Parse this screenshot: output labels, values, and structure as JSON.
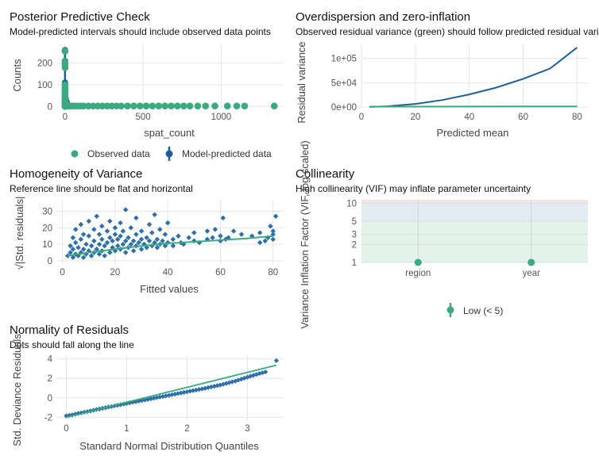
{
  "colors": {
    "green": "#3aaa80",
    "blue": "#1f5f99",
    "scatter_blue": "#2d6fa8",
    "grid": "#e6e6e6",
    "zone_low": "#e3f2ea",
    "zone_moderate": "#e2eaf2",
    "zone_high": "#f7e3e5"
  },
  "chart_data": [
    {
      "id": "ppc",
      "type": "scatter",
      "title": "Posterior Predictive Check",
      "subtitle": "Model-predicted intervals should include observed data points",
      "xlabel": "spat_count",
      "ylabel": "Counts",
      "xlim": [
        -50,
        1400
      ],
      "ylim": [
        -10,
        290
      ],
      "xticks": [
        0,
        500,
        1000
      ],
      "yticks": [
        0,
        100,
        200
      ],
      "legend_position": "bottom",
      "legend": [
        "Observed data",
        "Model-predicted data"
      ],
      "series": [
        {
          "name": "Observed data",
          "points": [
            [
              1,
              7
            ],
            [
              2,
              5
            ],
            [
              3,
              3
            ],
            [
              5,
              3
            ],
            [
              8,
              3
            ],
            [
              12,
              2
            ],
            [
              20,
              2
            ],
            [
              30,
              2
            ],
            [
              45,
              2
            ],
            [
              60,
              2
            ],
            [
              80,
              2
            ],
            [
              100,
              2
            ],
            [
              120,
              2
            ],
            [
              150,
              2
            ],
            [
              180,
              2
            ],
            [
              210,
              2
            ],
            [
              240,
              2
            ],
            [
              270,
              2
            ],
            [
              300,
              2
            ],
            [
              330,
              2
            ],
            [
              360,
              2
            ],
            [
              400,
              2
            ],
            [
              440,
              2
            ],
            [
              480,
              2
            ],
            [
              520,
              2
            ],
            [
              560,
              2
            ],
            [
              600,
              2
            ],
            [
              640,
              2
            ],
            [
              680,
              2
            ],
            [
              720,
              2
            ],
            [
              760,
              2
            ],
            [
              800,
              2
            ],
            [
              850,
              2
            ],
            [
              900,
              2
            ],
            [
              960,
              2
            ],
            [
              1040,
              2
            ],
            [
              1100,
              2
            ],
            [
              1150,
              2
            ],
            [
              1340,
              2
            ]
          ],
          "vertical_points": [
            [
              0,
              0
            ],
            [
              0,
              5
            ],
            [
              0,
              10
            ],
            [
              0,
              15
            ],
            [
              0,
              20
            ],
            [
              0,
              25
            ],
            [
              0,
              30
            ],
            [
              0,
              40
            ],
            [
              0,
              50
            ],
            [
              0,
              60
            ],
            [
              0,
              70
            ],
            [
              0,
              80
            ],
            [
              0,
              90
            ],
            [
              0,
              100
            ],
            [
              0,
              180
            ],
            [
              0,
              195
            ],
            [
              0,
              210
            ],
            [
              0,
              255
            ]
          ]
        },
        {
          "name": "Model-predicted data",
          "intervals": [
            [
              0,
              0,
              260
            ],
            [
              0,
              0,
              110
            ],
            [
              3,
              0,
              40
            ],
            [
              6,
              0,
              30
            ],
            [
              10,
              0,
              20
            ]
          ]
        }
      ]
    },
    {
      "id": "overdispersion",
      "type": "line",
      "title": "Overdispersion and zero-inflation",
      "subtitle": "Observed residual variance (green) should follow predicted residual variance (blue)",
      "xlabel": "Predicted mean",
      "ylabel": "Residual variance",
      "xlim": [
        0,
        84
      ],
      "ylim": [
        -3000,
        130000
      ],
      "xticks": [
        0,
        20,
        40,
        60,
        80
      ],
      "yticks": [
        0,
        50000,
        100000
      ],
      "ytick_labels": [
        "0e+00",
        "5e+04",
        "1e+05"
      ],
      "series": [
        {
          "name": "predicted",
          "color": "blue",
          "x": [
            3,
            10,
            20,
            30,
            40,
            50,
            60,
            70,
            80
          ],
          "y": [
            400,
            1800,
            6500,
            14500,
            26000,
            40000,
            58000,
            79000,
            122000
          ]
        },
        {
          "name": "observed",
          "color": "green",
          "x": [
            3,
            80
          ],
          "y": [
            1000,
            1500
          ]
        }
      ]
    },
    {
      "id": "homogeneity",
      "type": "scatter",
      "title": "Homogeneity of Variance",
      "subtitle": "Reference line should be flat and horizontal",
      "xlabel": "Fitted values",
      "ylabel": "√|Std. residuals|",
      "xlim": [
        -2,
        84
      ],
      "ylim": [
        -2,
        37
      ],
      "xticks": [
        0,
        20,
        40,
        60,
        80
      ],
      "yticks": [
        0,
        10,
        20,
        30
      ],
      "points": [
        [
          2,
          3
        ],
        [
          3,
          5
        ],
        [
          3,
          9
        ],
        [
          4,
          2
        ],
        [
          4,
          7
        ],
        [
          4,
          14
        ],
        [
          5,
          4
        ],
        [
          5,
          11
        ],
        [
          5,
          19
        ],
        [
          6,
          3
        ],
        [
          6,
          8
        ],
        [
          7,
          5
        ],
        [
          7,
          13
        ],
        [
          7,
          22
        ],
        [
          8,
          2
        ],
        [
          8,
          7
        ],
        [
          8,
          16
        ],
        [
          9,
          4
        ],
        [
          9,
          10
        ],
        [
          10,
          6
        ],
        [
          10,
          15
        ],
        [
          10,
          24
        ],
        [
          11,
          3
        ],
        [
          11,
          9
        ],
        [
          12,
          5
        ],
        [
          12,
          12
        ],
        [
          12,
          19
        ],
        [
          13,
          7
        ],
        [
          13,
          27
        ],
        [
          14,
          4
        ],
        [
          14,
          10
        ],
        [
          14,
          16
        ],
        [
          15,
          6
        ],
        [
          15,
          13
        ],
        [
          15,
          21
        ],
        [
          16,
          3
        ],
        [
          16,
          9
        ],
        [
          17,
          11
        ],
        [
          17,
          18
        ],
        [
          18,
          5
        ],
        [
          18,
          14
        ],
        [
          18,
          24
        ],
        [
          19,
          8
        ],
        [
          19,
          12
        ],
        [
          20,
          6
        ],
        [
          20,
          16
        ],
        [
          20,
          20
        ],
        [
          21,
          9
        ],
        [
          21,
          13
        ],
        [
          22,
          7
        ],
        [
          22,
          15
        ],
        [
          22,
          23
        ],
        [
          23,
          10
        ],
        [
          23,
          18
        ],
        [
          24,
          5
        ],
        [
          24,
          12
        ],
        [
          24,
          31
        ],
        [
          25,
          8
        ],
        [
          25,
          14
        ],
        [
          26,
          10
        ],
        [
          26,
          20
        ],
        [
          27,
          6
        ],
        [
          27,
          12
        ],
        [
          28,
          9
        ],
        [
          28,
          16
        ],
        [
          28,
          26
        ],
        [
          29,
          11
        ],
        [
          30,
          7
        ],
        [
          30,
          13
        ],
        [
          30,
          18
        ],
        [
          31,
          10
        ],
        [
          32,
          8
        ],
        [
          32,
          14
        ],
        [
          33,
          12
        ],
        [
          33,
          22
        ],
        [
          34,
          9
        ],
        [
          34,
          17
        ],
        [
          35,
          11
        ],
        [
          35,
          28
        ],
        [
          36,
          13
        ],
        [
          36,
          8
        ],
        [
          37,
          10
        ],
        [
          37,
          19
        ],
        [
          38,
          12
        ],
        [
          39,
          9
        ],
        [
          39,
          16
        ],
        [
          40,
          11
        ],
        [
          40,
          23
        ],
        [
          42,
          13
        ],
        [
          42,
          9
        ],
        [
          44,
          15
        ],
        [
          45,
          11
        ],
        [
          46,
          10
        ],
        [
          48,
          14
        ],
        [
          50,
          12
        ],
        [
          50,
          17
        ],
        [
          52,
          11
        ],
        [
          55,
          13
        ],
        [
          55,
          18
        ],
        [
          57,
          14
        ],
        [
          58,
          19
        ],
        [
          60,
          12
        ],
        [
          60,
          15
        ],
        [
          61,
          26
        ],
        [
          62,
          13
        ],
        [
          63,
          14
        ],
        [
          65,
          18
        ],
        [
          68,
          16
        ],
        [
          72,
          15
        ],
        [
          75,
          17
        ],
        [
          75,
          11
        ],
        [
          77,
          12
        ],
        [
          78,
          14
        ],
        [
          79,
          21
        ],
        [
          80,
          13
        ],
        [
          80,
          16
        ],
        [
          80,
          18
        ],
        [
          81,
          27
        ]
      ],
      "reference_line": {
        "x": [
          2,
          10,
          20,
          30,
          40,
          50,
          60,
          70,
          80
        ],
        "y": [
          3,
          5,
          7,
          9,
          10.5,
          11.5,
          12.5,
          13.5,
          15
        ]
      }
    },
    {
      "id": "collinearity",
      "type": "scatter",
      "title": "Collinearity",
      "subtitle": "High collinearity (VIF) may inflate parameter uncertainty",
      "xlabel": "",
      "ylabel": "Variance Inflation Factor (VIF, log-scaled)",
      "scale": "log",
      "ylim": [
        1,
        11.5
      ],
      "yticks": [
        1,
        2,
        3,
        5,
        10
      ],
      "categories": [
        "region",
        "year"
      ],
      "values": [
        1.0,
        1.0
      ],
      "zones": [
        {
          "name": "low",
          "from": 1,
          "to": 5
        },
        {
          "name": "moderate",
          "from": 5,
          "to": 10
        },
        {
          "name": "high",
          "from": 10,
          "to": 11.5
        }
      ],
      "legend_position": "bottom",
      "legend": [
        "Low (< 5)"
      ]
    },
    {
      "id": "normality",
      "type": "scatter",
      "title": "Normality of Residuals",
      "subtitle": "Dots should fall along the line",
      "xlabel": "Standard Normal Distribution Quantiles",
      "ylabel": "Std. Deviance Residuals",
      "xlim": [
        -0.15,
        3.6
      ],
      "ylim": [
        -2.3,
        4.3
      ],
      "xticks": [
        0,
        1,
        2,
        3
      ],
      "yticks": [
        -2,
        0,
        2,
        4
      ],
      "points": [
        [
          0,
          -1.85
        ],
        [
          0.05,
          -1.8
        ],
        [
          0.1,
          -1.75
        ],
        [
          0.15,
          -1.68
        ],
        [
          0.2,
          -1.6
        ],
        [
          0.25,
          -1.55
        ],
        [
          0.3,
          -1.48
        ],
        [
          0.35,
          -1.42
        ],
        [
          0.4,
          -1.35
        ],
        [
          0.45,
          -1.28
        ],
        [
          0.5,
          -1.2
        ],
        [
          0.55,
          -1.15
        ],
        [
          0.6,
          -1.08
        ],
        [
          0.65,
          -1.02
        ],
        [
          0.7,
          -0.95
        ],
        [
          0.75,
          -0.9
        ],
        [
          0.8,
          -0.82
        ],
        [
          0.85,
          -0.76
        ],
        [
          0.9,
          -0.7
        ],
        [
          0.95,
          -0.64
        ],
        [
          1.0,
          -0.58
        ],
        [
          1.05,
          -0.52
        ],
        [
          1.1,
          -0.45
        ],
        [
          1.15,
          -0.4
        ],
        [
          1.2,
          -0.34
        ],
        [
          1.25,
          -0.28
        ],
        [
          1.3,
          -0.22
        ],
        [
          1.35,
          -0.16
        ],
        [
          1.4,
          -0.1
        ],
        [
          1.45,
          -0.04
        ],
        [
          1.5,
          0.02
        ],
        [
          1.55,
          0.08
        ],
        [
          1.6,
          0.14
        ],
        [
          1.65,
          0.2
        ],
        [
          1.7,
          0.26
        ],
        [
          1.75,
          0.32
        ],
        [
          1.8,
          0.38
        ],
        [
          1.85,
          0.44
        ],
        [
          1.9,
          0.5
        ],
        [
          1.95,
          0.56
        ],
        [
          2.0,
          0.62
        ],
        [
          2.05,
          0.68
        ],
        [
          2.1,
          0.74
        ],
        [
          2.15,
          0.8
        ],
        [
          2.2,
          0.86
        ],
        [
          2.25,
          0.92
        ],
        [
          2.3,
          0.98
        ],
        [
          2.35,
          1.05
        ],
        [
          2.4,
          1.12
        ],
        [
          2.45,
          1.18
        ],
        [
          2.5,
          1.25
        ],
        [
          2.55,
          1.32
        ],
        [
          2.6,
          1.4
        ],
        [
          2.65,
          1.48
        ],
        [
          2.7,
          1.56
        ],
        [
          2.75,
          1.64
        ],
        [
          2.8,
          1.72
        ],
        [
          2.85,
          1.82
        ],
        [
          2.9,
          1.92
        ],
        [
          2.95,
          2.02
        ],
        [
          3.0,
          2.12
        ],
        [
          3.05,
          2.22
        ],
        [
          3.1,
          2.3
        ],
        [
          3.15,
          2.4
        ],
        [
          3.2,
          2.5
        ],
        [
          3.25,
          2.58
        ],
        [
          3.3,
          2.66
        ],
        [
          3.48,
          3.82
        ]
      ],
      "reference_line": {
        "x": [
          0,
          3.48
        ],
        "y": [
          -2.0,
          3.35
        ]
      }
    }
  ]
}
